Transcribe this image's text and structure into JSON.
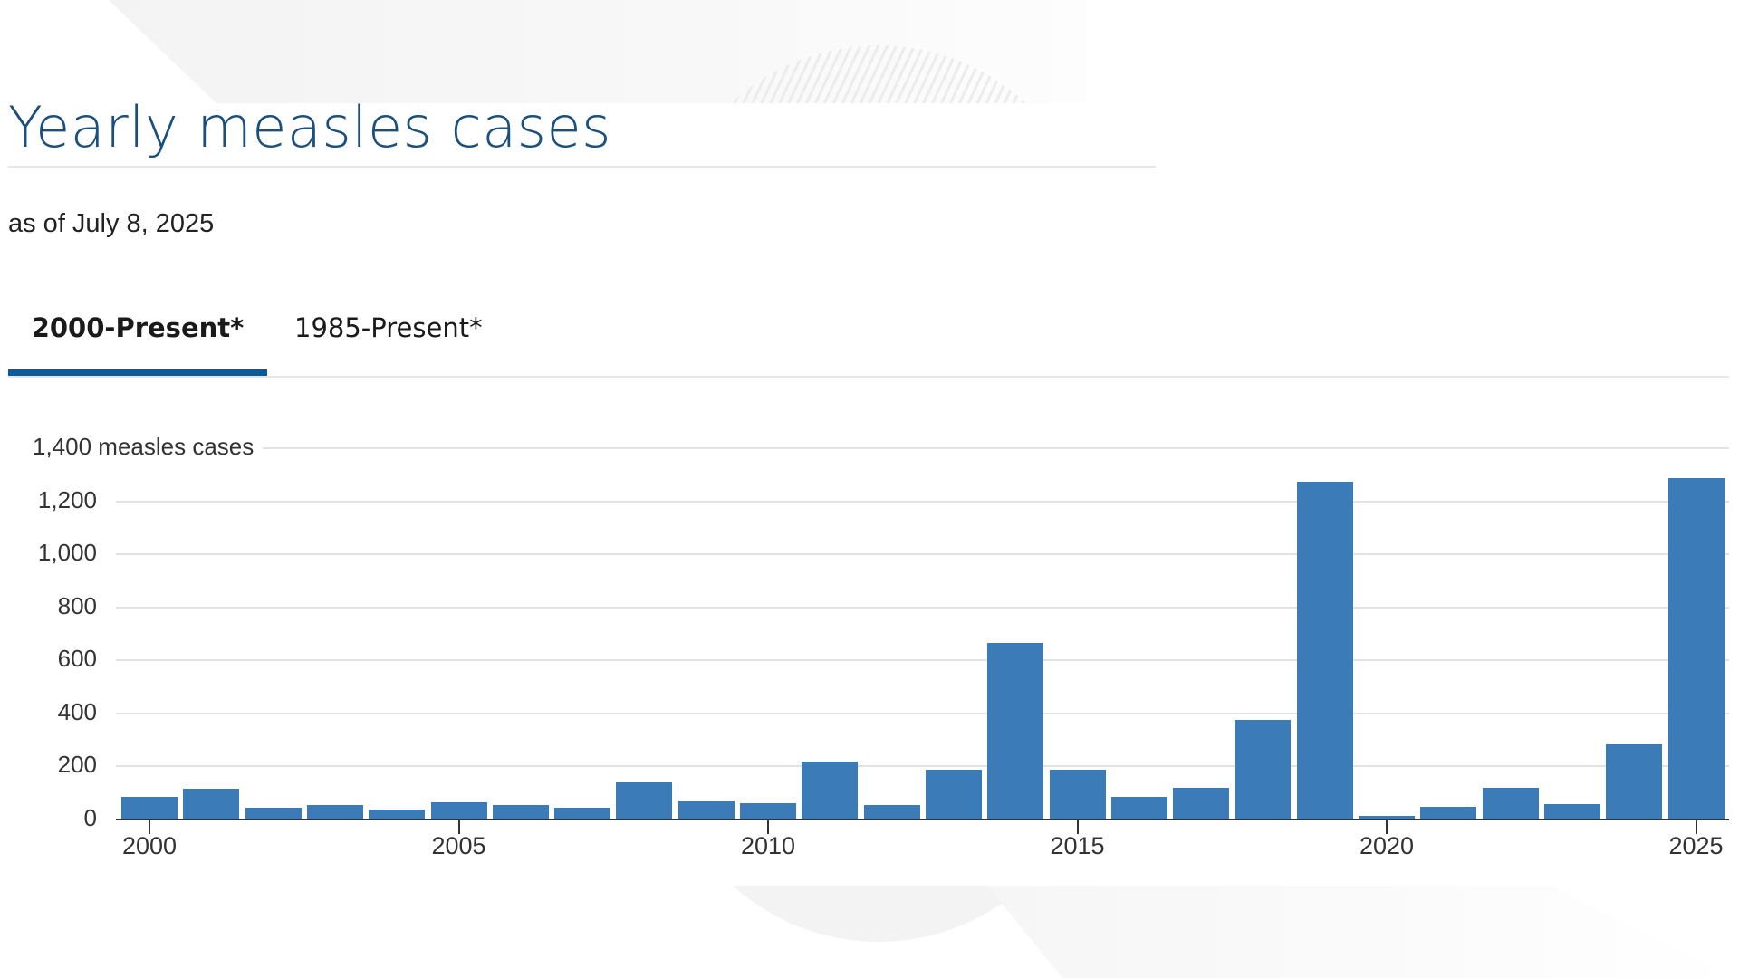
{
  "header": {
    "title": "Yearly measles cases",
    "subtitle": "as of July 8, 2025"
  },
  "tabs": [
    {
      "label": "2000-Present*",
      "active": true
    },
    {
      "label": "1985-Present*",
      "active": false
    }
  ],
  "colors": {
    "title": "#1b4f7e",
    "bar": "#3a7bb8",
    "tab_indicator": "#0b5a9c"
  },
  "chart_data": {
    "type": "bar",
    "title": "Yearly measles cases",
    "subtitle": "as of July 8, 2025",
    "xlabel": "",
    "ylabel": "measles cases",
    "ylim": [
      0,
      1400
    ],
    "yticks": [
      0,
      200,
      400,
      600,
      800,
      1000,
      1200,
      1400
    ],
    "ytick_labels": [
      "0",
      "200",
      "400",
      "600",
      "800",
      "1,000",
      "1,200",
      "1,400 measles cases"
    ],
    "xtick_labels": [
      "2000",
      "2005",
      "2010",
      "2015",
      "2020",
      "2025"
    ],
    "grid": true,
    "legend": null,
    "categories": [
      "2000",
      "2001",
      "2002",
      "2003",
      "2004",
      "2005",
      "2006",
      "2007",
      "2008",
      "2009",
      "2010",
      "2011",
      "2012",
      "2013",
      "2014",
      "2015",
      "2016",
      "2017",
      "2018",
      "2019",
      "2020",
      "2021",
      "2022",
      "2023",
      "2024",
      "2025"
    ],
    "values": [
      86,
      116,
      44,
      56,
      37,
      66,
      55,
      43,
      140,
      71,
      63,
      220,
      55,
      187,
      667,
      188,
      86,
      120,
      375,
      1274,
      13,
      49,
      121,
      59,
      285,
      1288
    ]
  }
}
